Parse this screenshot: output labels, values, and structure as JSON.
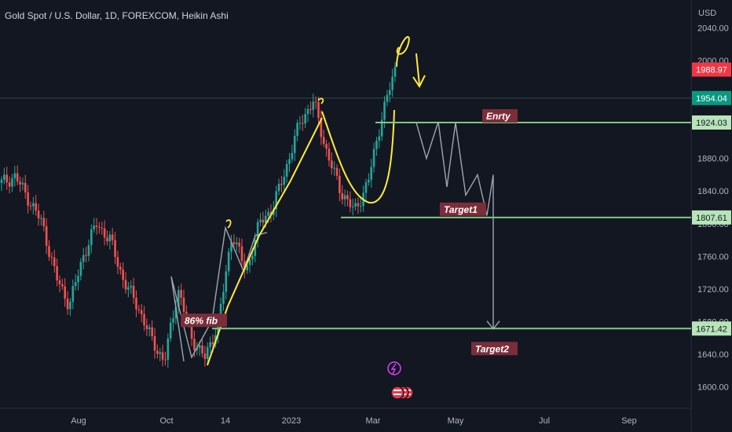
{
  "title": "Gold Spot / U.S. Dollar, 1D, FOREXCOM, Heikin Ashi",
  "currency": "USD",
  "colors": {
    "background": "#131722",
    "up": "#26a69a",
    "down": "#ef5350",
    "level_line": "#81c784",
    "projection": "#9aa7b0",
    "drawing": "#ffeb3b",
    "axis_text": "#b2b5be",
    "price_tag_red": "#f23645",
    "price_tag_teal": "#089981",
    "label_bg": "#7b2d3a"
  },
  "chart_data": {
    "type": "candlestick",
    "x_ticks": [
      "Aug",
      "Oct",
      "14",
      "2023",
      "Mar",
      "May",
      "Jul",
      "Sep"
    ],
    "y_ticks": [
      1600,
      1640,
      1680,
      1720,
      1760,
      1800,
      1840,
      1880,
      1920,
      2000,
      2040
    ],
    "y_tick_labels": [
      "1600.00",
      "1640.00",
      "1680.00",
      "1720.00",
      "1760.00",
      "1800.00",
      "1840.00",
      "1880.00",
      "1920.00",
      "2000.00",
      "2040.00"
    ],
    "ylim": [
      1585,
      2055
    ],
    "price_tags": [
      {
        "value": 1988.97,
        "label": "1988.97",
        "color": "#f23645"
      },
      {
        "value": 1954.04,
        "label": "1954.04",
        "color": "#089981"
      },
      {
        "value": 1924.03,
        "label": "1924.03",
        "color": "#b7e4b9"
      },
      {
        "value": 1807.61,
        "label": "1807.61",
        "color": "#b7e4b9"
      },
      {
        "value": 1671.42,
        "label": "1671.42",
        "color": "#b7e4b9"
      }
    ],
    "levels": [
      {
        "value": 1924.03,
        "label": "Enrty"
      },
      {
        "value": 1807.61,
        "label": "Target1"
      },
      {
        "value": 1671.42,
        "label": "86% fib"
      }
    ],
    "target2_label": "Target2",
    "series": [
      {
        "name": "",
        "anchors": [
          [
            "Jun",
            1850
          ],
          [
            "Jun",
            1858
          ],
          [
            "Jun",
            1830
          ],
          [
            "Jul",
            1800
          ],
          [
            "Jul",
            1735
          ],
          [
            "Jul",
            1700
          ],
          [
            "Aug",
            1760
          ],
          [
            "Aug",
            1800
          ],
          [
            "Aug",
            1780
          ],
          [
            "Sep",
            1730
          ],
          [
            "Sep",
            1700
          ],
          [
            "Sep",
            1660
          ],
          [
            "Oct",
            1630
          ],
          [
            "Oct",
            1720
          ],
          [
            "Oct",
            1660
          ],
          [
            "Nov",
            1635
          ],
          [
            "Nov",
            1680
          ],
          [
            "Nov",
            1790
          ],
          [
            "Nov",
            1740
          ],
          [
            "Dec",
            1800
          ],
          [
            "Dec",
            1820
          ],
          [
            "Jan",
            1870
          ],
          [
            "Jan",
            1925
          ],
          [
            "Feb",
            1950
          ],
          [
            "Feb",
            1885
          ],
          [
            "Feb",
            1840
          ],
          [
            "Mar",
            1815
          ],
          [
            "Mar",
            1850
          ],
          [
            "Mar",
            1930
          ],
          [
            "Mar",
            1989
          ]
        ]
      }
    ],
    "projection": [
      1924,
      1880,
      1925,
      1845,
      1924,
      1835,
      1860,
      1810,
      1860,
      1671
    ]
  }
}
